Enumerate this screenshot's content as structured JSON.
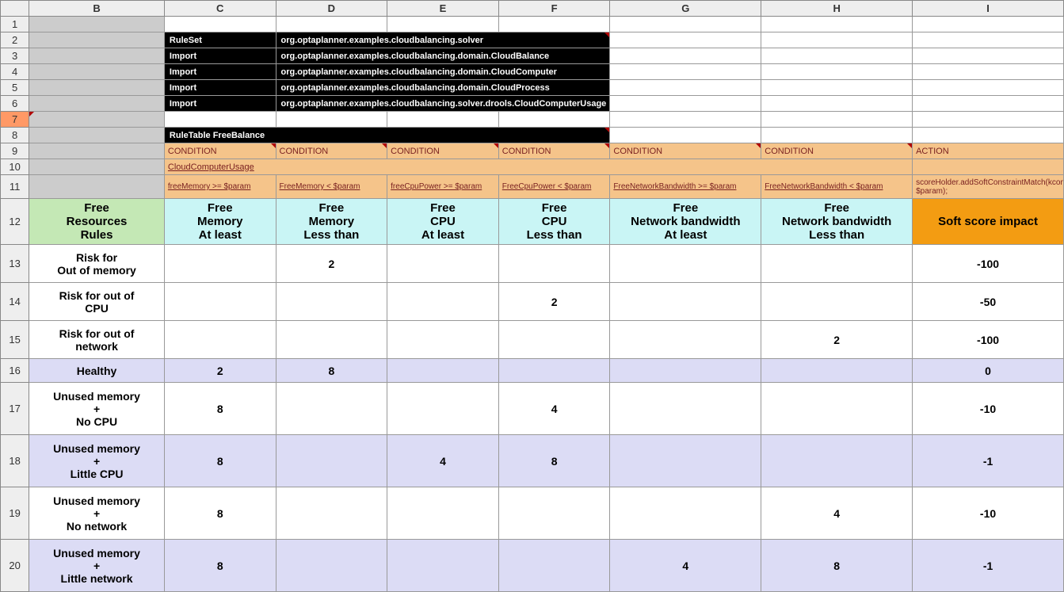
{
  "columns": [
    "B",
    "C",
    "D",
    "E",
    "F",
    "G",
    "H",
    "I"
  ],
  "rowNumbers": [
    "1",
    "2",
    "3",
    "4",
    "5",
    "6",
    "7",
    "8",
    "9",
    "10",
    "11",
    "12",
    "13",
    "14",
    "15",
    "16",
    "17",
    "18",
    "19",
    "20"
  ],
  "colWidths": {
    "rowhdr": 36,
    "B": 170,
    "C": 140,
    "D": 140,
    "E": 140,
    "F": 140,
    "G": 190,
    "H": 190,
    "I": 190
  },
  "imports": {
    "labels": [
      "RuleSet",
      "Import",
      "Import",
      "Import",
      "Import"
    ],
    "values": [
      "org.optaplanner.examples.cloudbalancing.solver",
      "org.optaplanner.examples.cloudbalancing.domain.CloudBalance",
      "org.optaplanner.examples.cloudbalancing.domain.CloudComputer",
      "org.optaplanner.examples.cloudbalancing.domain.CloudProcess",
      "org.optaplanner.examples.cloudbalancing.solver.drools.CloudComputerUsage"
    ]
  },
  "ruleTable": "RuleTable FreeBalance",
  "conditionLabel": "CONDITION",
  "actionLabel": "ACTION",
  "usageLabel": "CloudComputerUsage",
  "expressions": {
    "C": "freeMemory >= $param",
    "D": "FreeMemory < $param",
    "E": "freeCpuPower >= $param",
    "F": "FreeCpuPower < $param",
    "G": "FreeNetworkBandwidth >= $param",
    "H": "FreeNetworkBandwidth < $param",
    "I": "scoreHolder.addSoftConstraintMatch(kcontext, $param);"
  },
  "headers": {
    "B": "Free\nResources\nRules",
    "C": "Free\nMemory\nAt least",
    "D": "Free\nMemory\nLess than",
    "E": "Free\nCPU\nAt least",
    "F": "Free\nCPU\nLess than",
    "G": "Free\nNetwork bandwidth\nAt least",
    "H": "Free\nNetwork bandwidth\nLess than",
    "I": "Soft score impact"
  },
  "rules": [
    {
      "num": "13",
      "name": "Risk for\nOut of memory",
      "C": "",
      "D": "2",
      "E": "",
      "F": "",
      "G": "",
      "H": "",
      "I": "-100",
      "lav": false
    },
    {
      "num": "14",
      "name": "Risk for out of\nCPU",
      "C": "",
      "D": "",
      "E": "",
      "F": "2",
      "G": "",
      "H": "",
      "I": "-50",
      "lav": false
    },
    {
      "num": "15",
      "name": "Risk for out of\nnetwork",
      "C": "",
      "D": "",
      "E": "",
      "F": "",
      "G": "",
      "H": "2",
      "I": "-100",
      "lav": false
    },
    {
      "num": "16",
      "name": "Healthy",
      "C": "2",
      "D": "8",
      "E": "",
      "F": "",
      "G": "",
      "H": "",
      "I": "0",
      "lav": true
    },
    {
      "num": "17",
      "name": "Unused memory\n+\nNo CPU",
      "C": "8",
      "D": "",
      "E": "",
      "F": "4",
      "G": "",
      "H": "",
      "I": "-10",
      "lav": false
    },
    {
      "num": "18",
      "name": "Unused memory\n+\nLittle CPU",
      "C": "8",
      "D": "",
      "E": "4",
      "F": "8",
      "G": "",
      "H": "",
      "I": "-1",
      "lav": true
    },
    {
      "num": "19",
      "name": "Unused memory\n+\nNo network",
      "C": "8",
      "D": "",
      "E": "",
      "F": "",
      "G": "",
      "H": "4",
      "I": "-10",
      "lav": false
    },
    {
      "num": "20",
      "name": "Unused memory\n+\nLittle network",
      "C": "8",
      "D": "",
      "E": "",
      "F": "",
      "G": "4",
      "H": "8",
      "I": "-1",
      "lav": true
    }
  ],
  "colors": {
    "black": "#000000",
    "orange": "#f5c48a",
    "lightblue": "#c9f5f5",
    "green": "#c4e8b5",
    "darkorange": "#f39c12",
    "lavender": "#dcdcf5",
    "gray": "#cccccc",
    "rowhdr7": "#ff9966"
  }
}
